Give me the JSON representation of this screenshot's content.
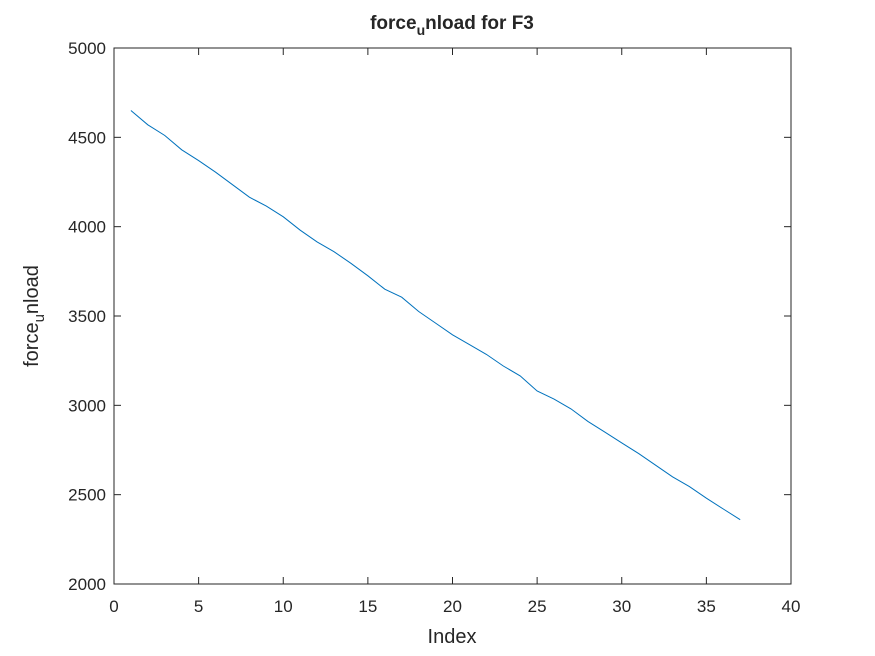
{
  "chart_data": {
    "type": "line",
    "title_parts": [
      "force",
      "u",
      "nload for F3"
    ],
    "xlabel": "Index",
    "ylabel_parts": [
      "force",
      "u",
      "nload"
    ],
    "xlim": [
      0,
      40
    ],
    "ylim": [
      2000,
      5000
    ],
    "xticks": [
      "0",
      "5",
      "10",
      "15",
      "20",
      "25",
      "30",
      "35",
      "40"
    ],
    "yticks": [
      "2000",
      "2500",
      "3000",
      "3500",
      "4000",
      "4500",
      "5000"
    ],
    "grid": false,
    "colors": {
      "line": "#0072BD",
      "axes": "#262626",
      "background": "#ffffff"
    },
    "series": [
      {
        "x": [
          1,
          2,
          3,
          4,
          5,
          6,
          7,
          8,
          9,
          10,
          11,
          12,
          13,
          14,
          15,
          16,
          17,
          18,
          19,
          20,
          21,
          22,
          23,
          24,
          25,
          26,
          27,
          28,
          29,
          30,
          31,
          32,
          33,
          34,
          35,
          36,
          37
        ],
        "values": [
          4650,
          4570,
          4510,
          4430,
          4370,
          4305,
          4235,
          4165,
          4115,
          4055,
          3980,
          3915,
          3860,
          3795,
          3725,
          3650,
          3605,
          3525,
          3460,
          3395,
          3340,
          3285,
          3220,
          3165,
          3080,
          3035,
          2980,
          2910,
          2850,
          2790,
          2730,
          2665,
          2600,
          2545,
          2480,
          2420,
          2360
        ]
      }
    ]
  }
}
